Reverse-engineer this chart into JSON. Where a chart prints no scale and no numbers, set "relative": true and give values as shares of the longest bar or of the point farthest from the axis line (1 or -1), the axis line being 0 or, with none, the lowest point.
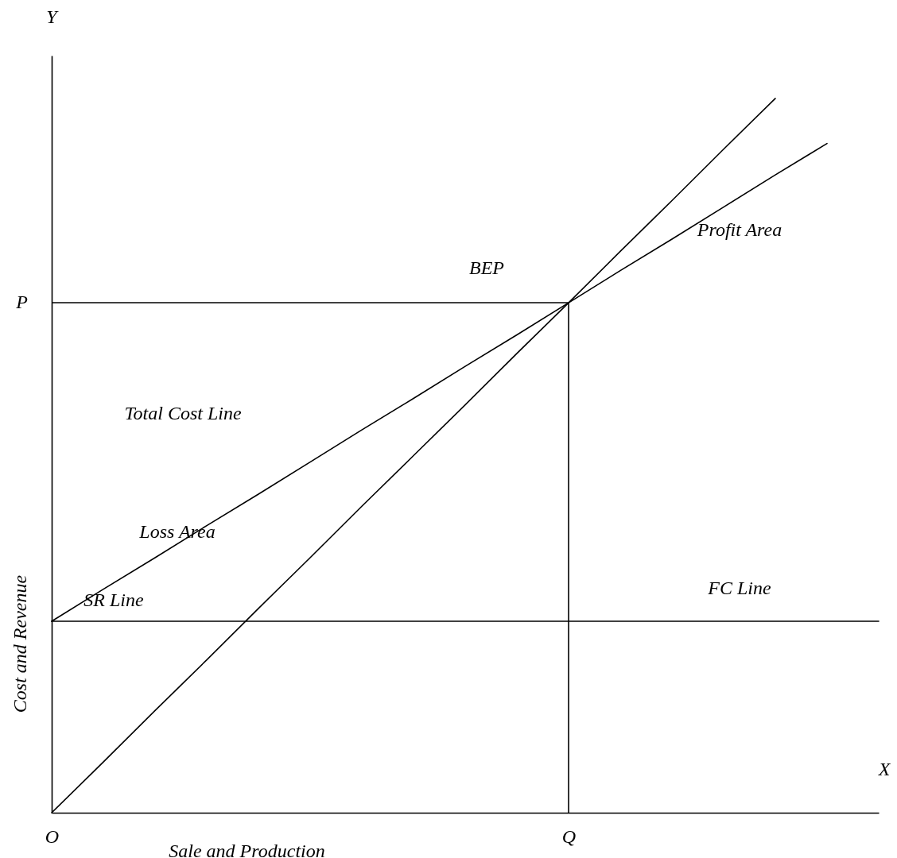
{
  "chart_data": {
    "type": "line",
    "relative": true,
    "xlabel": "Sale and Production",
    "ylabel": "Cost and Revenue",
    "categories": [
      "O",
      null,
      null,
      null,
      null,
      null,
      null,
      null,
      null,
      null,
      "Q",
      null,
      null,
      null,
      null,
      null,
      null
    ],
    "grid": false,
    "legend": false,
    "marker": "none",
    "line_style": "solid",
    "series": [
      {
        "color": "#000000",
        "values": [
          0,
          0.071,
          0.143,
          0.214,
          0.286,
          0.357,
          0.429,
          0.5,
          0.571,
          0.643,
          0.714,
          0.786,
          0.857,
          0.929,
          1,
          null,
          null
        ]
      },
      {
        "color": "#000000",
        "values": [
          0.268,
          0.313,
          0.357,
          0.402,
          0.446,
          0.491,
          0.536,
          0.58,
          0.625,
          0.669,
          0.714,
          0.759,
          0.803,
          0.848,
          0.893,
          0.937,
          null
        ]
      },
      {
        "color": "#000000",
        "values": [
          0.268,
          0.268,
          0.268,
          0.268,
          0.268,
          0.268,
          0.268,
          0.268,
          0.268,
          0.268,
          0.268,
          0.268,
          0.268,
          0.268,
          0.268,
          0.268,
          0.268
        ]
      }
    ],
    "ref_lines": [
      {
        "axis": "y",
        "value": 0.714,
        "label": "P",
        "color": "#000000"
      },
      {
        "axis": "x",
        "value": "Q",
        "color": "#000000"
      }
    ],
    "annotations": [
      "BEP",
      "Profit Area",
      "Total Cost Line",
      "Loss Area",
      "SR Line",
      "FC Line",
      "Y",
      "X"
    ]
  }
}
